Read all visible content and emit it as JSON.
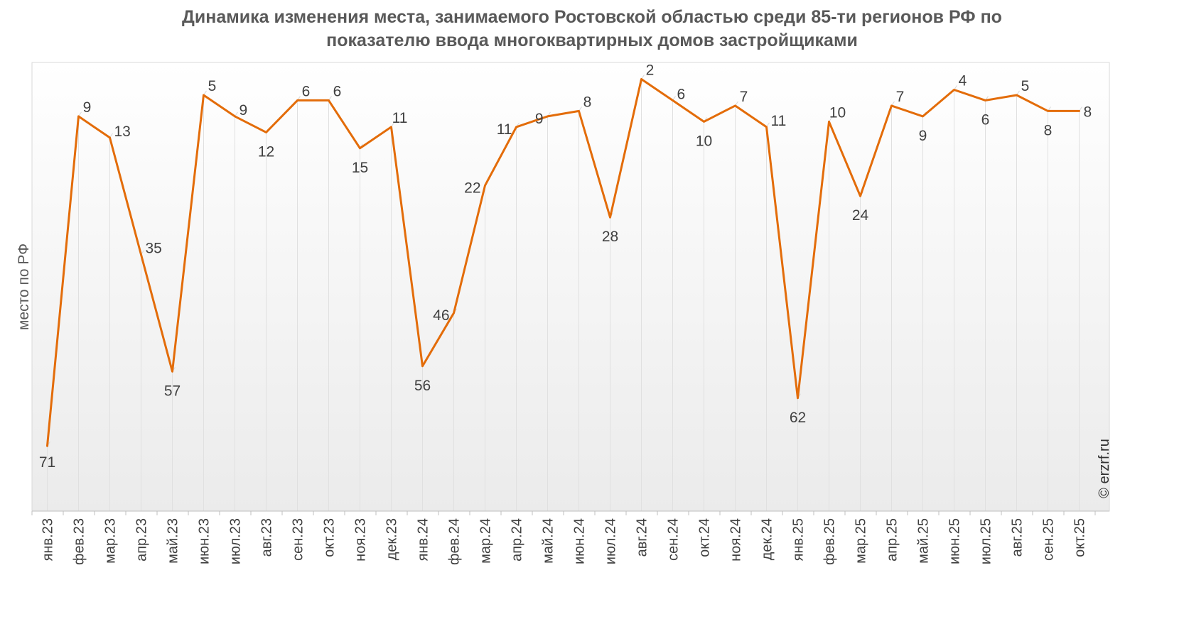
{
  "chart_data": {
    "type": "line",
    "title_line1": "Динамика изменения места, занимаемого Ростовской областью среди 85-ти регионов РФ по",
    "title_line2": "показателю ввода многоквартирных домов застройщиками",
    "ylabel": "место по РФ",
    "xlabel": "",
    "y_reversed": true,
    "ylim": [
      1,
      85
    ],
    "grid": "vertical",
    "legend": "none",
    "categories": [
      "янв.23",
      "фев.23",
      "мар.23",
      "апр.23",
      "май.23",
      "июн.23",
      "июл.23",
      "авг.23",
      "сен.23",
      "окт.23",
      "ноя.23",
      "дек.23",
      "янв.24",
      "фев.24",
      "мар.24",
      "апр.24",
      "май.24",
      "июн.24",
      "июл.24",
      "авг.24",
      "сен.24",
      "окт.24",
      "ноя.24",
      "дек.24",
      "янв.25",
      "фев.25",
      "мар.25",
      "апр.25",
      "май.25",
      "июн.25",
      "июл.25",
      "авг.25",
      "сен.25",
      "окт.25"
    ],
    "values": [
      71,
      9,
      13,
      35,
      57,
      5,
      9,
      12,
      6,
      6,
      15,
      11,
      56,
      46,
      22,
      11,
      9,
      8,
      28,
      2,
      6,
      10,
      7,
      11,
      62,
      10,
      24,
      7,
      9,
      4,
      6,
      5,
      8,
      8
    ],
    "line_color": "#E36C09"
  },
  "watermark": "© erzrf.ru"
}
